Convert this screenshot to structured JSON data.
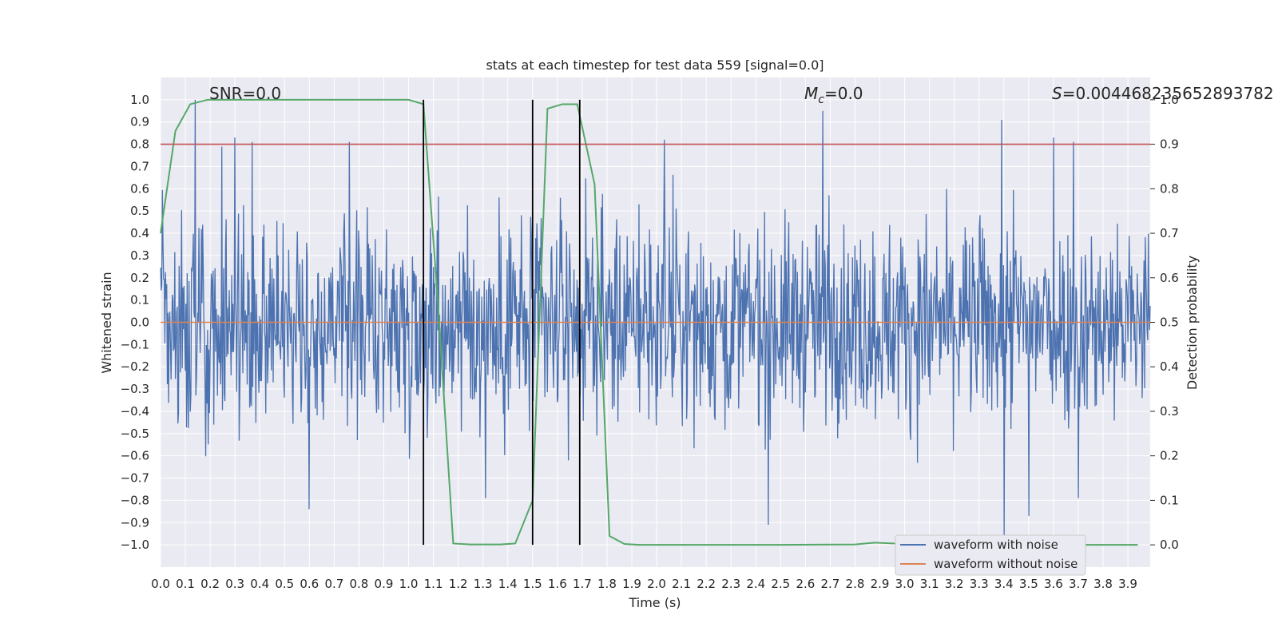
{
  "chart_data": {
    "type": "line",
    "title": "stats at each timestep for test data 559 [signal=0.0]",
    "xlabel": "Time (s)",
    "ylabel": "Whitened strain",
    "y2label": "Detection probability",
    "xlim": [
      0.0,
      3.99
    ],
    "ylim": [
      -1.1,
      1.1
    ],
    "y2lim": [
      -0.05,
      1.05
    ],
    "xticks": [
      "0.0",
      "0.1",
      "0.2",
      "0.3",
      "0.4",
      "0.5",
      "0.6",
      "0.7",
      "0.8",
      "0.9",
      "1.0",
      "1.1",
      "1.2",
      "1.3",
      "1.4",
      "1.5",
      "1.6",
      "1.7",
      "1.8",
      "1.9",
      "2.0",
      "2.1",
      "2.2",
      "2.3",
      "2.4",
      "2.5",
      "2.6",
      "2.7",
      "2.8",
      "2.9",
      "3.0",
      "3.1",
      "3.2",
      "3.3",
      "3.4",
      "3.5",
      "3.6",
      "3.7",
      "3.8",
      "3.9"
    ],
    "yticks": [
      "1.0",
      "0.9",
      "0.8",
      "0.7",
      "0.6",
      "0.5",
      "0.4",
      "0.3",
      "0.2",
      "0.1",
      "0.0",
      "-0.1",
      "-0.2",
      "-0.3",
      "-0.4",
      "-0.5",
      "-0.6",
      "-0.7",
      "-0.8",
      "-0.9",
      "-1.0"
    ],
    "y2ticks": [
      "1.0",
      "0.9",
      "0.8",
      "0.7",
      "0.6",
      "0.5",
      "0.4",
      "0.3",
      "0.2",
      "0.1",
      "0.0"
    ],
    "annotations": {
      "snr": "SNR=0.0",
      "mc_symbol": "M",
      "mc_sub": "c",
      "mc_value": "=0.0",
      "s_symbol": "S",
      "s_value": "=0.004468235652893782"
    },
    "legend": {
      "placement": "bottom-right",
      "entries": [
        "waveform with noise",
        "waveform without noise"
      ]
    },
    "threshold": {
      "value": 0.9,
      "axis": "right",
      "color": "#c44e52"
    },
    "vlines": [
      1.06,
      1.5,
      1.69
    ],
    "noise_series": {
      "name": "waveform with noise",
      "color": "#4c72b0",
      "description_peaks": [
        {
          "x": 0.14,
          "y": 1.0
        },
        {
          "x": 0.3,
          "y": 0.83
        },
        {
          "x": 0.37,
          "y": 0.81
        },
        {
          "x": 0.76,
          "y": 0.81
        },
        {
          "x": 2.03,
          "y": 0.82
        },
        {
          "x": 2.67,
          "y": 0.95
        },
        {
          "x": 3.39,
          "y": 0.91
        },
        {
          "x": 3.6,
          "y": 0.83
        },
        {
          "x": 3.68,
          "y": 0.81
        },
        {
          "x": 0.6,
          "y": -0.84
        },
        {
          "x": 1.31,
          "y": -0.79
        },
        {
          "x": 2.45,
          "y": -0.91
        },
        {
          "x": 3.4,
          "y": -1.0
        },
        {
          "x": 3.5,
          "y": -0.87
        },
        {
          "x": 3.7,
          "y": -0.79
        }
      ]
    },
    "clean_series": {
      "name": "waveform without noise",
      "color": "#dd8452",
      "y_constant": 0.0
    },
    "prob_series": {
      "name": "Detection probability",
      "color": "#55a868",
      "x": [
        0.0,
        0.06,
        0.12,
        0.19,
        0.25,
        0.31,
        0.37,
        0.44,
        0.5,
        0.56,
        0.62,
        0.69,
        0.75,
        0.81,
        0.87,
        0.94,
        1.0,
        1.06,
        1.12,
        1.18,
        1.25,
        1.31,
        1.37,
        1.43,
        1.5,
        1.56,
        1.62,
        1.68,
        1.75,
        1.81,
        1.87,
        1.93,
        2.0,
        2.5,
        2.8,
        2.88,
        3.0,
        3.5,
        3.94
      ],
      "y": [
        0.7,
        0.93,
        0.99,
        1.0,
        1.0,
        1.0,
        1.0,
        1.0,
        1.0,
        1.0,
        1.0,
        1.0,
        1.0,
        1.0,
        1.0,
        1.0,
        1.0,
        0.99,
        0.53,
        0.003,
        0.001,
        0.001,
        0.001,
        0.003,
        0.1,
        0.98,
        0.99,
        0.99,
        0.81,
        0.02,
        0.002,
        0.0,
        0.0,
        0.0,
        0.001,
        0.005,
        0.002,
        0.0,
        0.0
      ]
    }
  }
}
